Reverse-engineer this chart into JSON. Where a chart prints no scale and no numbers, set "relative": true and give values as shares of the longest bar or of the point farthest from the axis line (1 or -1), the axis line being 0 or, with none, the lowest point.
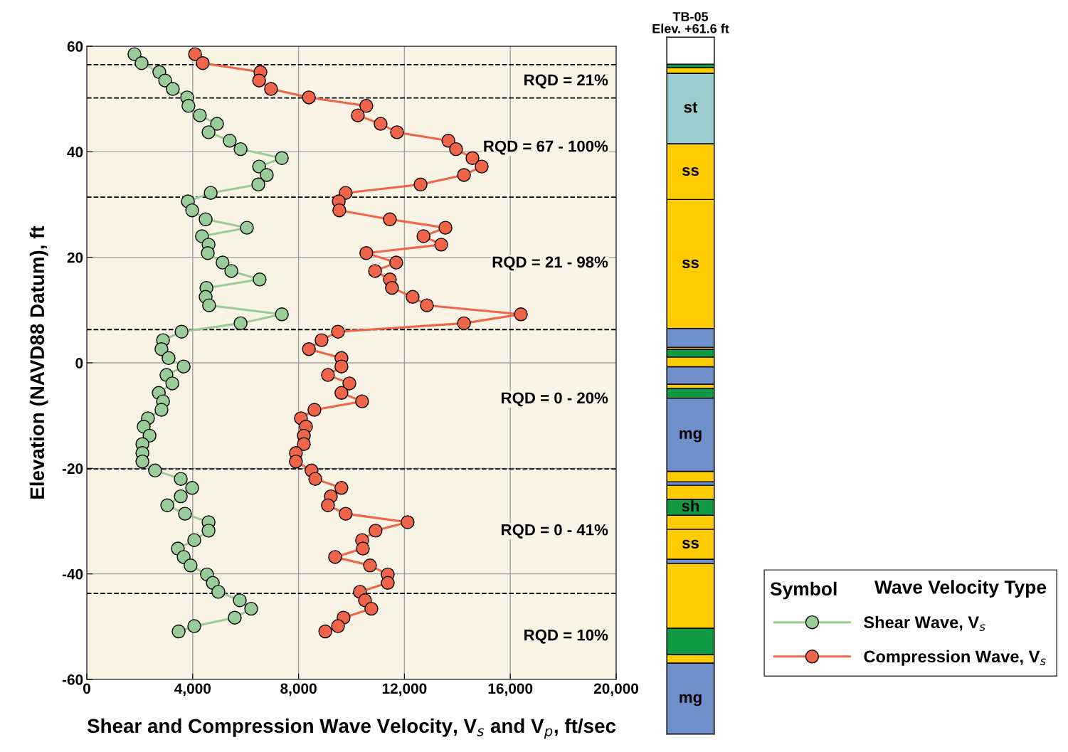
{
  "chart_data": [
    {
      "type": "line",
      "xlabel": "Shear and Compression Wave Velocity, V$_{s}$ and V$_{p}$, ft/sec",
      "ylabel": "Elevation (NAVD88 Datum), ft",
      "xlim": [
        0,
        20000
      ],
      "xticks": [
        0,
        {
          "value": 4000,
          "label": "4,000"
        },
        {
          "value": 8000,
          "label": "8,000"
        },
        {
          "value": 12000,
          "label": "12,000"
        },
        {
          "value": 16000,
          "label": "16,000"
        },
        {
          "value": 20000,
          "label": "20,000"
        }
      ],
      "ylim": [
        -60,
        60
      ],
      "yticks": [
        -60,
        -40,
        -20,
        0,
        20,
        40,
        60
      ],
      "grid": true,
      "marker": "circle",
      "line_style": "solid",
      "legend": "bottom right",
      "legend_title": "Wave Velocity Type",
      "series": [
        {
          "name": "Shear Wave, V$_{s}$",
          "color": "#99cc99",
          "x": [
            1800,
            2070,
            2740,
            2960,
            3250,
            3790,
            3840,
            4270,
            4920,
            4600,
            5400,
            5810,
            7370,
            6510,
            6800,
            6480,
            4680,
            3820,
            3980,
            4490,
            6050,
            4350,
            4600,
            4570,
            5130,
            5460,
            6530,
            4520,
            4490,
            4620,
            7370,
            5810,
            3580,
            2880,
            2820,
            3090,
            3660,
            3010,
            3230,
            2720,
            2880,
            2820,
            2310,
            2150,
            2370,
            2100,
            2100,
            2100,
            2580,
            3550,
            3980,
            3550,
            3040,
            3710,
            4600,
            4600,
            4060,
            3440,
            3660,
            3920,
            4540,
            4760,
            4970,
            5780,
            6210,
            5590,
            4060,
            3470
          ],
          "values": [
            58.5,
            56.8,
            55.1,
            53.5,
            51.9,
            50.3,
            48.7,
            46.9,
            45.3,
            43.7,
            42.1,
            40.5,
            38.8,
            37.2,
            35.6,
            33.8,
            32.2,
            30.6,
            28.9,
            27.2,
            25.6,
            24.0,
            22.4,
            20.8,
            19.0,
            17.4,
            15.8,
            14.2,
            12.5,
            10.9,
            9.2,
            7.5,
            5.9,
            4.3,
            2.6,
            0.9,
            -0.7,
            -2.3,
            -3.9,
            -5.7,
            -7.3,
            -8.9,
            -10.5,
            -12.1,
            -13.8,
            -15.4,
            -17.1,
            -18.7,
            -20.4,
            -22.0,
            -23.7,
            -25.3,
            -27.0,
            -28.6,
            -30.2,
            -31.8,
            -33.6,
            -35.2,
            -36.8,
            -38.4,
            -40.1,
            -41.7,
            -43.4,
            -45.0,
            -46.6,
            -48.3,
            -49.9,
            -50.9
          ]
        },
        {
          "name": "Compression Wave, V$_{s}$",
          "color": "#f0654a",
          "x": [
            4090,
            4380,
            6560,
            6510,
            6960,
            8390,
            10560,
            10240,
            11100,
            11720,
            13660,
            13950,
            14570,
            14920,
            14250,
            12610,
            9780,
            9520,
            9540,
            11450,
            13550,
            12720,
            13390,
            10560,
            11690,
            10890,
            11450,
            11530,
            12310,
            12850,
            16400,
            14250,
            9490,
            8870,
            8390,
            9620,
            9620,
            9110,
            9920,
            9620,
            10400,
            8600,
            8090,
            8280,
            8200,
            8200,
            7900,
            7900,
            8490,
            8630,
            9620,
            9220,
            9110,
            9780,
            12120,
            10910,
            10400,
            10430,
            9380,
            10700,
            11370,
            11370,
            10320,
            10510,
            10750,
            9700,
            9490,
            9010
          ],
          "values": [
            58.5,
            56.8,
            55.1,
            53.5,
            51.9,
            50.3,
            48.7,
            46.9,
            45.3,
            43.7,
            42.1,
            40.5,
            38.8,
            37.2,
            35.6,
            33.8,
            32.2,
            30.6,
            28.9,
            27.2,
            25.6,
            24.0,
            22.4,
            20.8,
            19.0,
            17.4,
            15.8,
            14.2,
            12.5,
            10.9,
            9.2,
            7.5,
            5.9,
            4.3,
            2.6,
            0.9,
            -0.7,
            -2.3,
            -3.9,
            -5.7,
            -7.3,
            -8.9,
            -10.5,
            -12.1,
            -13.8,
            -15.4,
            -17.1,
            -18.7,
            -20.4,
            -22.0,
            -23.7,
            -25.3,
            -27.0,
            -28.6,
            -30.2,
            -31.8,
            -33.6,
            -35.2,
            -36.8,
            -38.4,
            -40.1,
            -41.7,
            -43.4,
            -45.0,
            -46.6,
            -48.3,
            -49.9,
            -50.9
          ]
        }
      ],
      "ref_lines": [
        {
          "axis": "y",
          "value": 56.5,
          "color": "#000000",
          "line_style": "dashed"
        },
        {
          "axis": "y",
          "value": 50.2,
          "color": "#000000",
          "line_style": "dashed"
        },
        {
          "axis": "y",
          "value": 31.4,
          "color": "#000000",
          "line_style": "dashed"
        },
        {
          "axis": "y",
          "value": 6.3,
          "color": "#000000",
          "line_style": "dashed"
        },
        {
          "axis": "y",
          "value": -20.1,
          "color": "#000000",
          "line_style": "dashed"
        },
        {
          "axis": "y",
          "value": -43.7,
          "color": "#000000",
          "line_style": "dashed"
        }
      ],
      "annotations": [
        "RQD = 21%",
        "RQD = 67 - 100%",
        "RQD = 21 - 98%",
        "RQD = 0 - 20%",
        "RQD = 0 - 41%",
        "RQD = 10%",
        "Symbol"
      ]
    },
    {
      "type": "bar",
      "title": "TB-05\nElev. +61.6 ft",
      "categories": [
        null
      ],
      "stacked": true,
      "relative": true,
      "series": [
        {
          "name": "mg",
          "color": "#7090cc",
          "values": [
            0.102
          ]
        },
        {
          "color": "#ffcc00",
          "values": [
            0.012
          ]
        },
        {
          "color": "#119944",
          "values": [
            0.038
          ]
        },
        {
          "color": "#ffcc00",
          "values": [
            0.093
          ]
        },
        {
          "color": "#7090cc",
          "values": [
            0.006
          ]
        },
        {
          "name": "ss",
          "color": "#ffcc00",
          "values": [
            0.043
          ]
        },
        {
          "color": "#ffcc00",
          "values": [
            0.02
          ]
        },
        {
          "name": "sh",
          "color": "#119944",
          "values": [
            0.023
          ]
        },
        {
          "color": "#ffcc00",
          "values": [
            0.02
          ]
        },
        {
          "color": "#7090cc",
          "values": [
            0.005
          ]
        },
        {
          "color": "#ffcc00",
          "values": [
            0.015
          ]
        },
        {
          "name": "mg",
          "color": "#7090cc",
          "values": [
            0.105
          ]
        },
        {
          "color": "#119944",
          "values": [
            0.014
          ]
        },
        {
          "color": "#ffcc00",
          "values": [
            0.006
          ]
        },
        {
          "color": "#7090cc",
          "values": [
            0.025
          ]
        },
        {
          "color": "#ffcc00",
          "values": [
            0.014
          ]
        },
        {
          "color": "#119944",
          "values": [
            0.011
          ]
        },
        {
          "color": "#ffcc00",
          "values": [
            0.003
          ]
        },
        {
          "color": "#7090cc",
          "values": [
            0.027
          ]
        },
        {
          "name": "ss",
          "color": "#ffcc00",
          "values": [
            0.185
          ]
        },
        {
          "name": "ss",
          "color": "#ffcc00",
          "values": [
            0.08
          ]
        },
        {
          "name": "st",
          "color": "#99cccc",
          "values": [
            0.101
          ]
        },
        {
          "color": "#ffcc00",
          "values": [
            0.008
          ]
        },
        {
          "color": "#119944",
          "values": [
            0.005
          ]
        },
        {
          "color": "#ffffff",
          "values": [
            0.039
          ]
        }
      ]
    }
  ]
}
